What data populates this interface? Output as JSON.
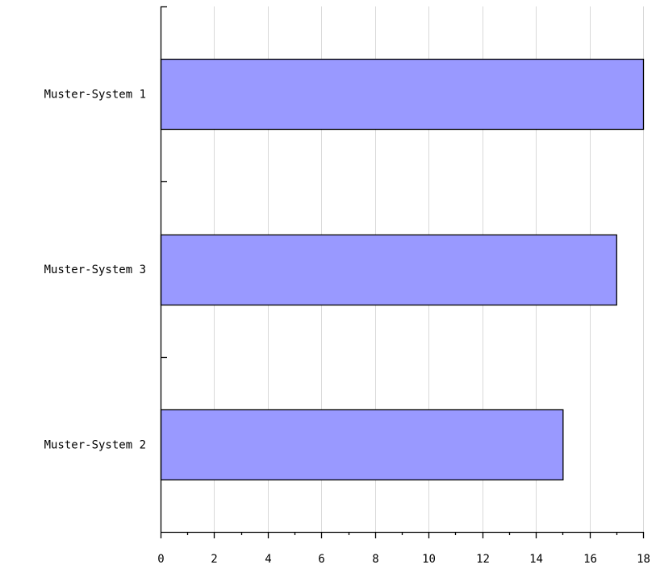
{
  "chart_data": {
    "type": "bar",
    "orientation": "horizontal",
    "categories": [
      "Muster-System 1",
      "Muster-System 3",
      "Muster-System 2"
    ],
    "values": [
      18,
      17,
      15
    ],
    "xlim": [
      0,
      18
    ],
    "xticks": [
      0,
      2,
      4,
      6,
      8,
      10,
      12,
      14,
      16,
      18
    ],
    "grid": "vertical",
    "legend": "none",
    "title": "",
    "xlabel": "",
    "ylabel": "",
    "colors": {
      "bar_fill": "#9999ff",
      "bar_stroke": "#000000",
      "grid": "#d9d9d9",
      "axis": "#000000"
    }
  }
}
